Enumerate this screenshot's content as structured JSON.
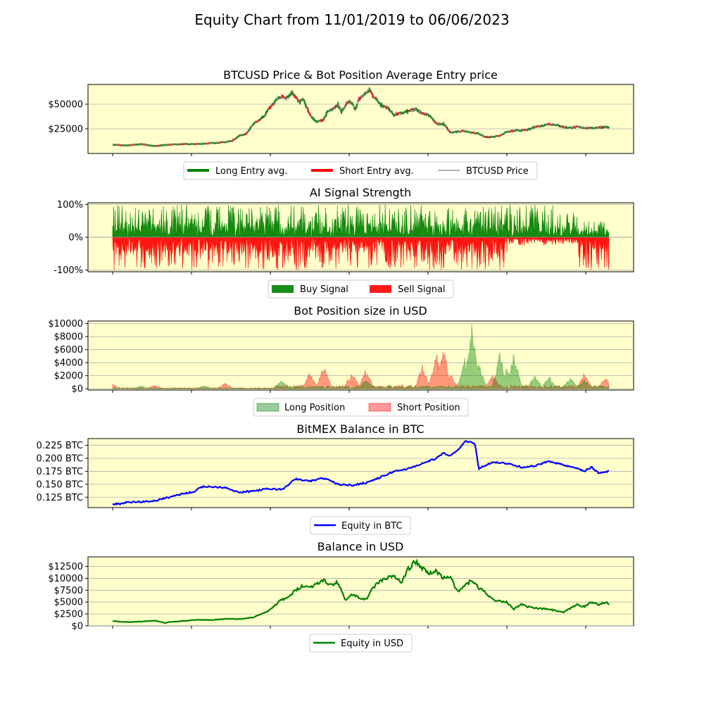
{
  "figure": {
    "title": "Equity Chart from 11/01/2019 to 06/06/2023"
  },
  "colors": {
    "panel_bg": "#ffffcc",
    "grid": "#b0b0b0",
    "long": "#008000",
    "short": "#ff0000",
    "price": "#808080",
    "btc_equity": "#0000ff",
    "usd_equity": "#008000"
  },
  "chart_data": [
    {
      "type": "line",
      "title": "BTCUSD Price & Bot Position Average Entry price",
      "ylim": [
        0,
        70000
      ],
      "yticks": [
        25000,
        50000
      ],
      "ytick_labels": [
        "$25000",
        "$50000"
      ],
      "grid": "horizontal",
      "legend": [
        "Long Entry avg.",
        "Short Entry avg.",
        "BTCUSD Price"
      ],
      "x": [
        0,
        20,
        40,
        60,
        80,
        100,
        120,
        140,
        160,
        170,
        180,
        190,
        200,
        210,
        215,
        220,
        225,
        230,
        235,
        240,
        245,
        250,
        255,
        260,
        265,
        270,
        280,
        285,
        290,
        295,
        300,
        305,
        310,
        315,
        320,
        325,
        330,
        335,
        340,
        345,
        350,
        355,
        360,
        365,
        370,
        375,
        380,
        385,
        390,
        395,
        400,
        410,
        420,
        430,
        440,
        450,
        460,
        470,
        480,
        490,
        500,
        510,
        520,
        530,
        540,
        550,
        560,
        570,
        580,
        590,
        600,
        610,
        620,
        630,
        640,
        650,
        660,
        670,
        680,
        690,
        700,
        705
      ],
      "series": [
        {
          "name": "BTCUSD Price",
          "values": [
            9000,
            8000,
            9500,
            7500,
            9000,
            9500,
            9500,
            10500,
            11500,
            13000,
            18000,
            20000,
            30000,
            35000,
            38000,
            43000,
            48000,
            52000,
            56000,
            58000,
            55000,
            58000,
            62000,
            57000,
            52000,
            56000,
            40000,
            35000,
            32000,
            33000,
            35000,
            42000,
            44000,
            46000,
            49000,
            43000,
            48000,
            53000,
            50000,
            44000,
            56000,
            58000,
            61000,
            65000,
            58000,
            55000,
            50000,
            48000,
            47000,
            43000,
            39000,
            41000,
            43000,
            45000,
            41000,
            39000,
            30000,
            30000,
            21000,
            22000,
            23000,
            21000,
            20000,
            16500,
            17000,
            18000,
            22000,
            23000,
            23500,
            24000,
            27000,
            28000,
            30000,
            29000,
            27000,
            26000,
            27000,
            26000,
            25500,
            26500,
            27000,
            26000
          ]
        }
      ]
    },
    {
      "type": "bar",
      "title": "AI Signal Strength",
      "ylim": [
        -1.05,
        1.05
      ],
      "yticks": [
        -1,
        0,
        1
      ],
      "ytick_labels": [
        "-100%",
        "0%",
        "100%"
      ],
      "grid": "horizontal",
      "legend": [
        "Buy Signal",
        "Sell Signal"
      ],
      "x_range": [
        0,
        705
      ],
      "series": [
        {
          "name": "Buy Signal",
          "values": "0 to 100% positive, per period"
        },
        {
          "name": "Sell Signal",
          "values": "0 to -100% negative, per period"
        }
      ]
    },
    {
      "type": "area",
      "title": "Bot Position size in USD",
      "ylim": [
        -200,
        10400
      ],
      "yticks": [
        0,
        2000,
        4000,
        6000,
        8000,
        10000
      ],
      "ytick_labels": [
        "$0",
        "$2000",
        "$4000",
        "$6000",
        "$8000",
        "$10000"
      ],
      "grid": "horizontal",
      "legend": [
        "Long Position",
        "Short Position"
      ],
      "x_range": [
        0,
        705
      ],
      "series": [
        {
          "name": "Long Position",
          "peaks": [
            [
              40,
              500
            ],
            [
              130,
              600
            ],
            [
              240,
              1500
            ],
            [
              360,
              1600
            ],
            [
              500,
              5000
            ],
            [
              510,
              10000
            ],
            [
              520,
              4500
            ],
            [
              550,
              6000
            ],
            [
              560,
              3500
            ],
            [
              570,
              5800
            ],
            [
              600,
              2200
            ],
            [
              620,
              2000
            ],
            [
              650,
              2000
            ],
            [
              670,
              1500
            ]
          ]
        },
        {
          "name": "Short Position",
          "peaks": [
            [
              0,
              800
            ],
            [
              60,
              600
            ],
            [
              160,
              1000
            ],
            [
              280,
              2700
            ],
            [
              300,
              3800
            ],
            [
              340,
              3000
            ],
            [
              360,
              3200
            ],
            [
              440,
              3800
            ],
            [
              460,
              5800
            ],
            [
              470,
              6500
            ],
            [
              480,
              2500
            ],
            [
              540,
              2500
            ],
            [
              670,
              2500
            ],
            [
              700,
              1800
            ]
          ]
        }
      ]
    },
    {
      "type": "line",
      "title": "BitMEX Balance in BTC",
      "ylim": [
        0.105,
        0.238
      ],
      "yticks": [
        0.125,
        0.15,
        0.175,
        0.2,
        0.225
      ],
      "ytick_labels": [
        "0.125 BTC",
        "0.150 BTC",
        "0.175 BTC",
        "0.200 BTC",
        "0.225 BTC"
      ],
      "grid": "horizontal",
      "legend": [
        "Equity in BTC"
      ],
      "x": [
        0,
        10,
        20,
        40,
        60,
        80,
        100,
        115,
        120,
        130,
        140,
        160,
        180,
        200,
        220,
        240,
        245,
        250,
        260,
        280,
        300,
        320,
        340,
        360,
        380,
        400,
        420,
        440,
        460,
        470,
        480,
        490,
        500,
        510,
        515,
        520,
        540,
        560,
        580,
        600,
        620,
        640,
        660,
        670,
        680,
        690,
        705
      ],
      "series": [
        {
          "name": "Equity in BTC",
          "values": [
            0.112,
            0.112,
            0.115,
            0.116,
            0.118,
            0.125,
            0.132,
            0.135,
            0.14,
            0.146,
            0.145,
            0.144,
            0.134,
            0.137,
            0.141,
            0.14,
            0.143,
            0.15,
            0.16,
            0.156,
            0.162,
            0.15,
            0.148,
            0.153,
            0.163,
            0.175,
            0.18,
            0.19,
            0.2,
            0.21,
            0.205,
            0.215,
            0.232,
            0.232,
            0.225,
            0.18,
            0.193,
            0.19,
            0.183,
            0.185,
            0.195,
            0.187,
            0.18,
            0.175,
            0.183,
            0.172,
            0.175
          ]
        }
      ]
    },
    {
      "type": "line",
      "title": "Balance in USD",
      "ylim": [
        0,
        14500
      ],
      "yticks": [
        0,
        2500,
        5000,
        7500,
        10000,
        12500
      ],
      "ytick_labels": [
        "$0",
        "$2500",
        "$5000",
        "$7500",
        "$10000",
        "$12500"
      ],
      "grid": "horizontal",
      "legend": [
        "Equity in USD"
      ],
      "x": [
        0,
        20,
        40,
        60,
        75,
        80,
        100,
        120,
        140,
        160,
        180,
        200,
        220,
        240,
        250,
        260,
        270,
        280,
        290,
        300,
        310,
        320,
        330,
        340,
        350,
        360,
        370,
        380,
        390,
        400,
        410,
        420,
        430,
        440,
        450,
        460,
        470,
        480,
        490,
        500,
        510,
        520,
        530,
        540,
        560,
        570,
        580,
        590,
        600,
        620,
        640,
        660,
        670,
        680,
        690,
        700,
        705
      ],
      "series": [
        {
          "name": "Equity in USD",
          "values": [
            1000,
            800,
            900,
            1100,
            600,
            800,
            1000,
            1300,
            1200,
            1500,
            1400,
            1800,
            3000,
            5500,
            6000,
            7500,
            8500,
            8000,
            9000,
            9500,
            8500,
            9200,
            5500,
            6500,
            6000,
            5500,
            8000,
            9500,
            10000,
            10500,
            9000,
            12000,
            13500,
            12000,
            11000,
            11500,
            10000,
            10500,
            7000,
            8500,
            9500,
            8000,
            7000,
            5500,
            5000,
            3500,
            4500,
            4000,
            3700,
            3500,
            2800,
            4500,
            4000,
            5000,
            4500,
            5000,
            4500
          ]
        }
      ]
    }
  ]
}
